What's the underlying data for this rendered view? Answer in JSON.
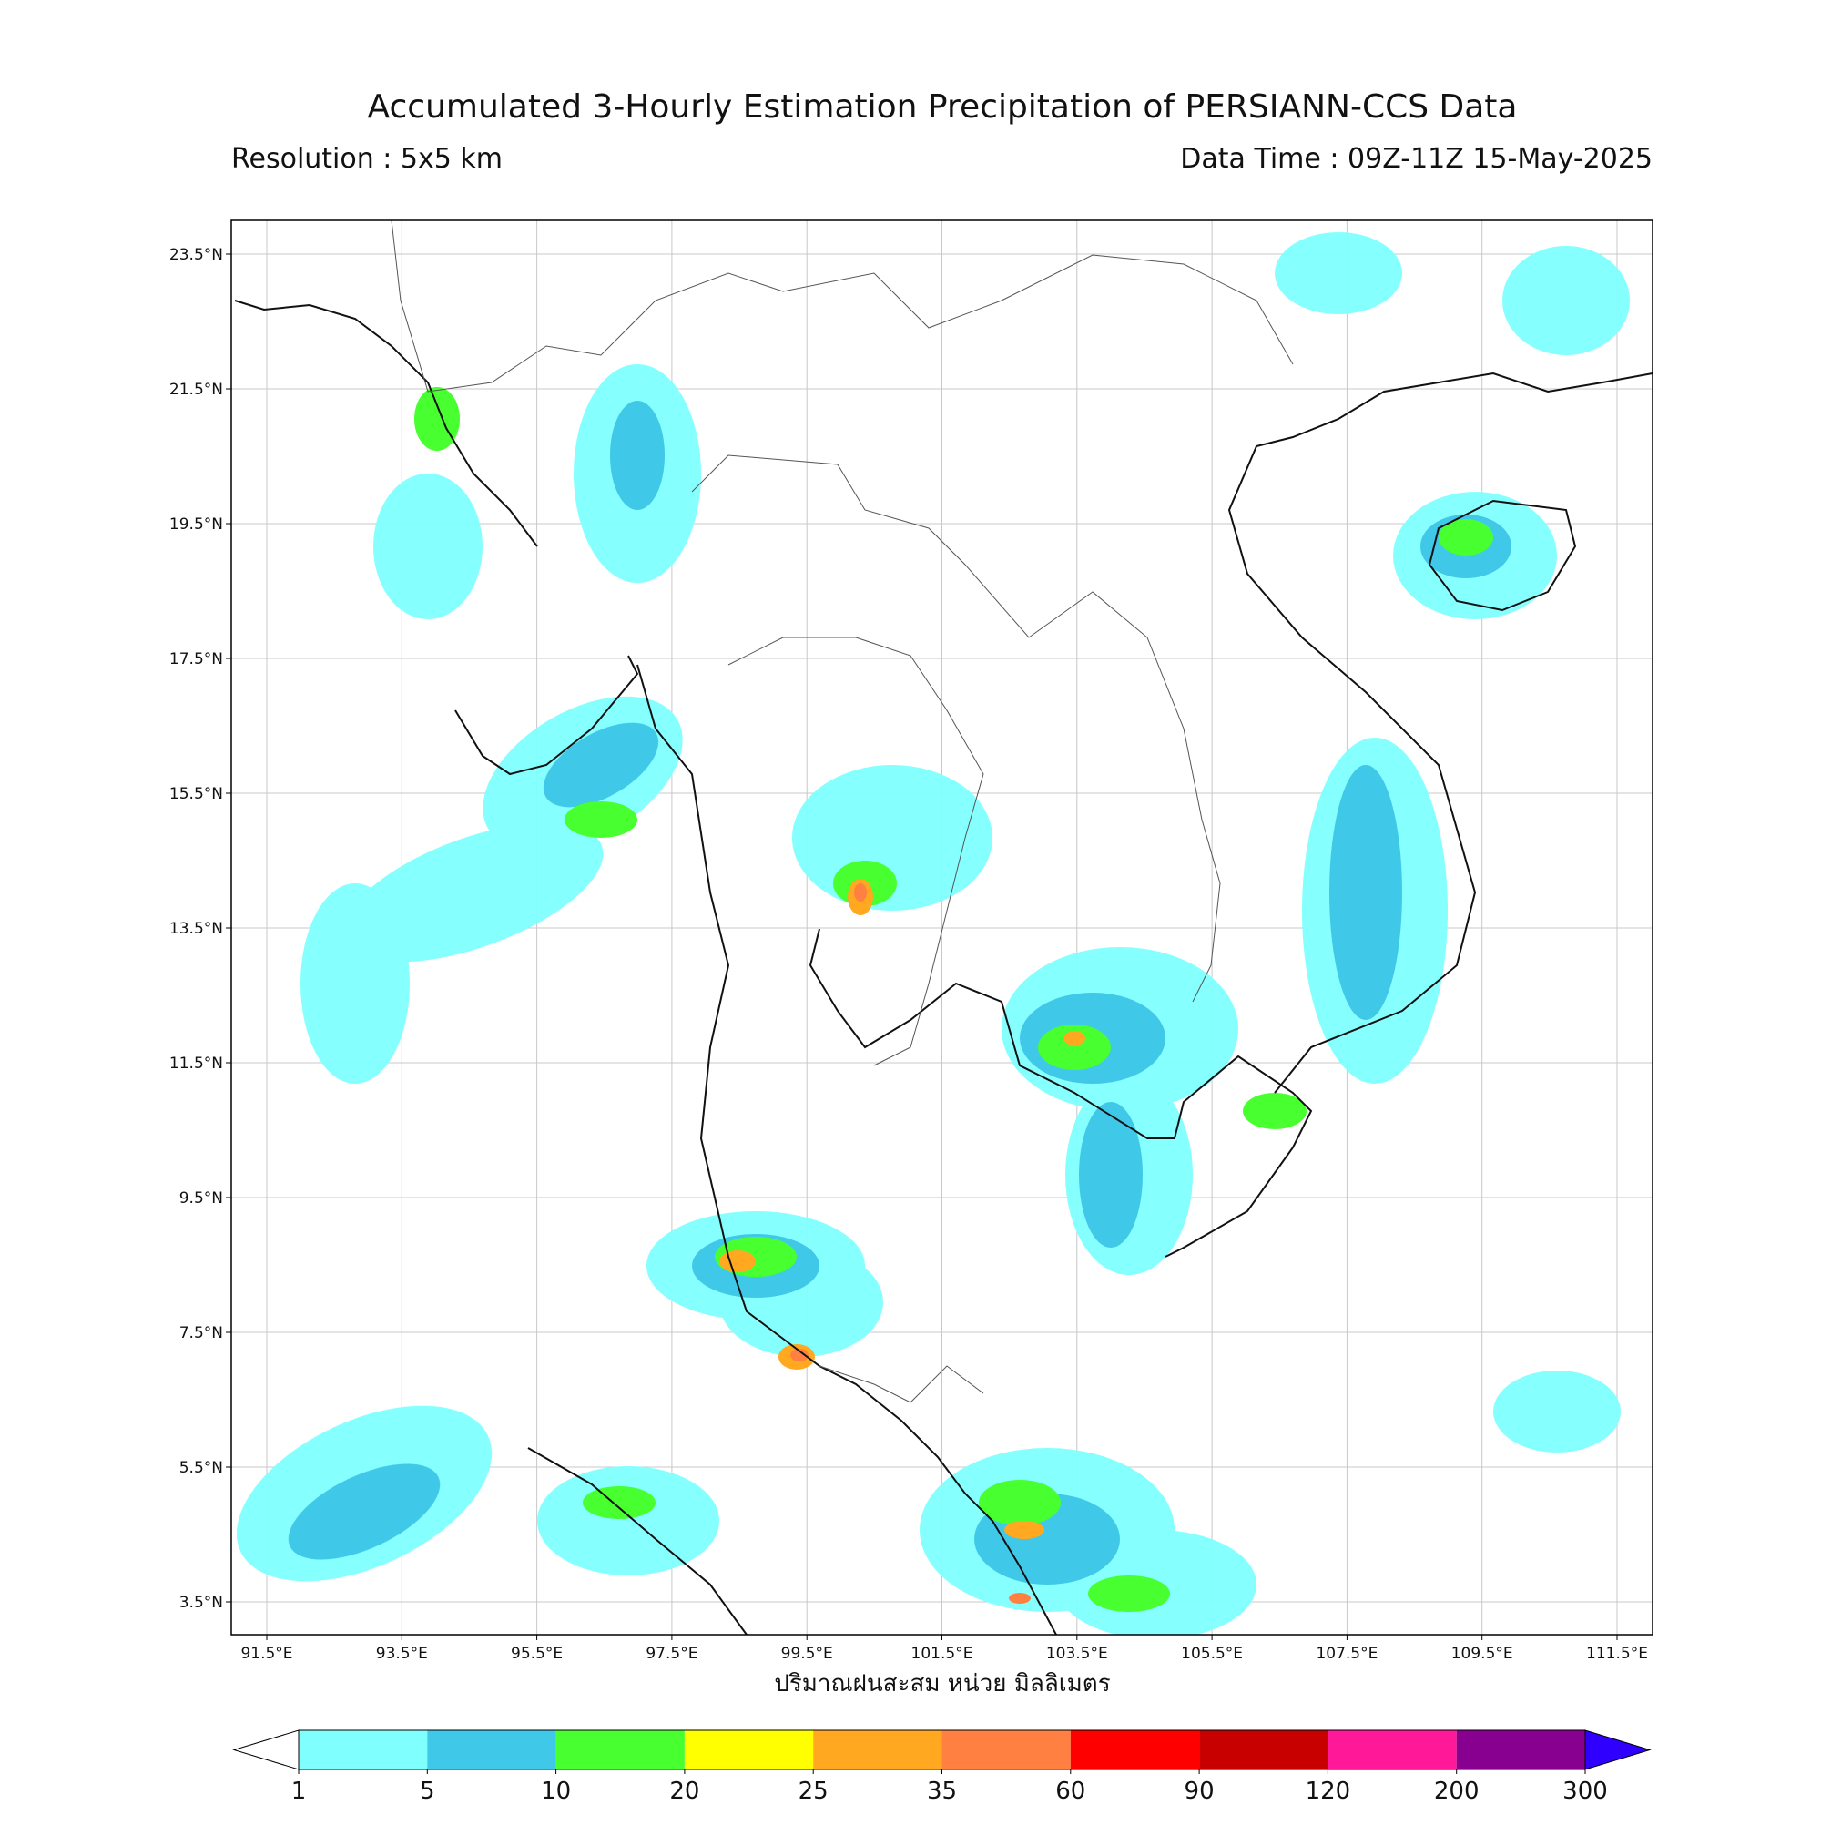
{
  "map": {
    "title": "Accumulated 3-Hourly Estimation Precipitation of PERSIANN-CCS Data",
    "resolution": "Resolution : 5x5 km",
    "data_time": "Data Time : 09Z-11Z 15-May-2025",
    "x_label": "ปริมาณฝนสะสม หน่วย มิลลิเมตร",
    "lat_ticks": [
      {
        "value": 23.5,
        "label": "23.5°N"
      },
      {
        "value": 21.5,
        "label": "21.5°N"
      },
      {
        "value": 19.5,
        "label": "19.5°N"
      },
      {
        "value": 17.5,
        "label": "17.5°N"
      },
      {
        "value": 15.5,
        "label": "15.5°N"
      },
      {
        "value": 13.5,
        "label": "13.5°N"
      },
      {
        "value": 11.5,
        "label": "11.5°N"
      },
      {
        "value": 9.5,
        "label": "9.5°N"
      },
      {
        "value": 7.5,
        "label": "7.5°N"
      },
      {
        "value": 5.5,
        "label": "5.5°N"
      },
      {
        "value": 3.5,
        "label": "3.5°N"
      }
    ],
    "lon_ticks": [
      {
        "value": 91.5,
        "label": "91.5°E"
      },
      {
        "value": 93.5,
        "label": "93.5°E"
      },
      {
        "value": 95.5,
        "label": "95.5°E"
      },
      {
        "value": 97.5,
        "label": "97.5°E"
      },
      {
        "value": 99.5,
        "label": "99.5°E"
      },
      {
        "value": 101.5,
        "label": "101.5°E"
      },
      {
        "value": 103.5,
        "label": "103.5°E"
      },
      {
        "value": 105.5,
        "label": "105.5°E"
      },
      {
        "value": 107.5,
        "label": "107.5°E"
      },
      {
        "value": 109.5,
        "label": "109.5°E"
      },
      {
        "value": 111.5,
        "label": "111.5°E"
      }
    ],
    "colorbar": {
      "levels": [
        1,
        5,
        10,
        20,
        25,
        35,
        60,
        90,
        120,
        200,
        300
      ],
      "colors": [
        "#80ffff",
        "#40c8e8",
        "#48ff30",
        "#ffff00",
        "#ffa820",
        "#ff8040",
        "#ff0000",
        "#c80000",
        "#ff1898",
        "#880090"
      ],
      "under_color": "#ffffff",
      "over_color": "#3000ff"
    }
  }
}
